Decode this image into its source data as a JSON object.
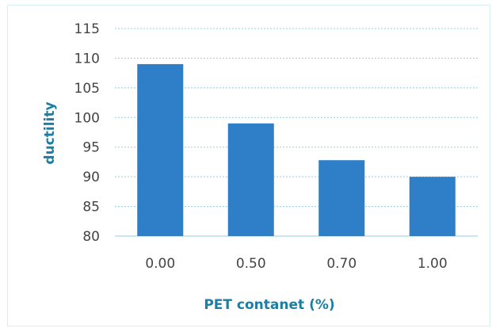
{
  "colors": {
    "bar": "#2f7fc8",
    "grid": "#8fd0e4",
    "axis_title": "#1c7ea3",
    "tick_label": "#444444"
  },
  "chart_data": {
    "type": "bar",
    "title": "",
    "xlabel": "PET contanet (%)",
    "ylabel": "ductility",
    "categories": [
      "0.00",
      "0.50",
      "0.70",
      "1.00"
    ],
    "values": [
      109,
      99,
      92.8,
      90
    ],
    "ylim": [
      80,
      115
    ],
    "yticks": [
      80,
      85,
      90,
      95,
      100,
      105,
      110,
      115
    ],
    "grid": true,
    "grid_style": "dashed",
    "legend": "none"
  }
}
